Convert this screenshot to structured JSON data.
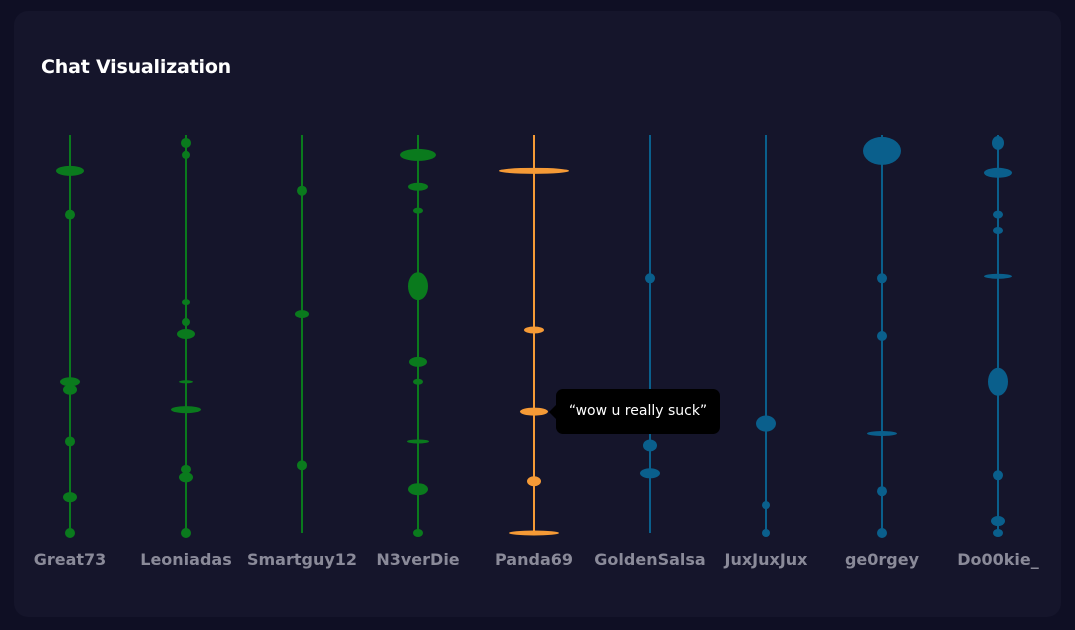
{
  "title": "Chat Visualization",
  "tooltip": {
    "text": "“wow u really suck”"
  },
  "colors": {
    "background": "#0f0f24",
    "card": "#15152b",
    "green": "#0a7a1d",
    "orange": "#f59a36",
    "blue": "#0a5f8c",
    "label": "#8a8a99"
  },
  "chart_data": {
    "type": "scatter",
    "title": "Chat Visualization",
    "categories": [
      "Great73",
      "Leoniadas",
      "Smartguy12",
      "N3verDie",
      "Panda69",
      "GoldenSalsa",
      "JuxJuxJux",
      "ge0rgey",
      "Do00kie_"
    ],
    "series": [
      {
        "name": "Great73",
        "color": "green",
        "messages": [
          {
            "t": 0.09,
            "w": 28,
            "h": 10
          },
          {
            "t": 0.2,
            "w": 10,
            "h": 10
          },
          {
            "t": 0.62,
            "w": 20,
            "h": 9
          },
          {
            "t": 0.64,
            "w": 14,
            "h": 10
          },
          {
            "t": 0.77,
            "w": 10,
            "h": 10
          },
          {
            "t": 0.91,
            "w": 14,
            "h": 10
          },
          {
            "t": 1.0,
            "w": 10,
            "h": 10
          }
        ]
      },
      {
        "name": "Leoniadas",
        "color": "green",
        "messages": [
          {
            "t": 0.02,
            "w": 10,
            "h": 10
          },
          {
            "t": 0.05,
            "w": 8,
            "h": 8
          },
          {
            "t": 0.42,
            "w": 8,
            "h": 6
          },
          {
            "t": 0.47,
            "w": 8,
            "h": 8
          },
          {
            "t": 0.5,
            "w": 18,
            "h": 10
          },
          {
            "t": 0.62,
            "w": 14,
            "h": 3
          },
          {
            "t": 0.69,
            "w": 30,
            "h": 7
          },
          {
            "t": 0.84,
            "w": 10,
            "h": 9
          },
          {
            "t": 0.86,
            "w": 14,
            "h": 10
          },
          {
            "t": 1.0,
            "w": 10,
            "h": 10
          }
        ]
      },
      {
        "name": "Smartguy12",
        "color": "green",
        "messages": [
          {
            "t": 0.14,
            "w": 10,
            "h": 10
          },
          {
            "t": 0.45,
            "w": 14,
            "h": 8
          },
          {
            "t": 0.83,
            "w": 10,
            "h": 10
          }
        ]
      },
      {
        "name": "N3verDie",
        "color": "green",
        "messages": [
          {
            "t": 0.05,
            "w": 36,
            "h": 12
          },
          {
            "t": 0.13,
            "w": 20,
            "h": 8
          },
          {
            "t": 0.19,
            "w": 10,
            "h": 6
          },
          {
            "t": 0.38,
            "w": 20,
            "h": 28
          },
          {
            "t": 0.57,
            "w": 18,
            "h": 10
          },
          {
            "t": 0.62,
            "w": 10,
            "h": 6
          },
          {
            "t": 0.77,
            "w": 22,
            "h": 4
          },
          {
            "t": 0.89,
            "w": 20,
            "h": 12
          },
          {
            "t": 1.0,
            "w": 10,
            "h": 8
          }
        ]
      },
      {
        "name": "Panda69",
        "color": "orange",
        "messages": [
          {
            "t": 0.09,
            "w": 70,
            "h": 6
          },
          {
            "t": 0.49,
            "w": 20,
            "h": 7
          },
          {
            "t": 0.695,
            "w": 28,
            "h": 8,
            "tooltip": true
          },
          {
            "t": 0.87,
            "w": 14,
            "h": 10
          },
          {
            "t": 1.0,
            "w": 50,
            "h": 5
          }
        ]
      },
      {
        "name": "GoldenSalsa",
        "color": "blue",
        "messages": [
          {
            "t": 0.36,
            "w": 10,
            "h": 10
          },
          {
            "t": 0.78,
            "w": 14,
            "h": 12
          },
          {
            "t": 0.85,
            "w": 20,
            "h": 10
          }
        ]
      },
      {
        "name": "JuxJuxJux",
        "color": "blue",
        "messages": [
          {
            "t": 0.725,
            "w": 20,
            "h": 16
          },
          {
            "t": 0.93,
            "w": 8,
            "h": 8
          },
          {
            "t": 1.0,
            "w": 8,
            "h": 8
          }
        ]
      },
      {
        "name": "ge0rgey",
        "color": "blue",
        "messages": [
          {
            "t": 0.04,
            "w": 38,
            "h": 28
          },
          {
            "t": 0.36,
            "w": 10,
            "h": 10
          },
          {
            "t": 0.505,
            "w": 10,
            "h": 10
          },
          {
            "t": 0.75,
            "w": 30,
            "h": 5
          },
          {
            "t": 0.895,
            "w": 10,
            "h": 10
          },
          {
            "t": 1.0,
            "w": 10,
            "h": 10
          }
        ]
      },
      {
        "name": "Do00kie_",
        "color": "blue",
        "messages": [
          {
            "t": 0.02,
            "w": 12,
            "h": 14
          },
          {
            "t": 0.095,
            "w": 28,
            "h": 10
          },
          {
            "t": 0.2,
            "w": 10,
            "h": 8
          },
          {
            "t": 0.24,
            "w": 10,
            "h": 7
          },
          {
            "t": 0.355,
            "w": 28,
            "h": 5
          },
          {
            "t": 0.62,
            "w": 20,
            "h": 28
          },
          {
            "t": 0.855,
            "w": 10,
            "h": 10
          },
          {
            "t": 0.97,
            "w": 14,
            "h": 10
          },
          {
            "t": 1.0,
            "w": 10,
            "h": 8
          }
        ]
      }
    ]
  }
}
